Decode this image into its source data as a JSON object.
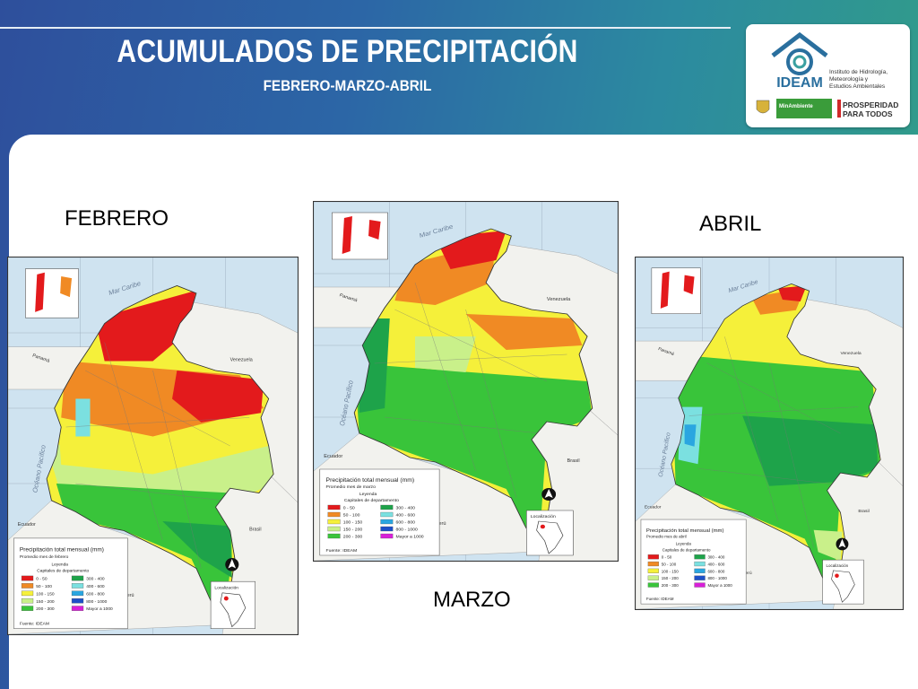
{
  "header": {
    "title": "ACUMULADOS DE PRECIPITACIÓN",
    "subtitle": "FEBRERO-MARZO-ABRIL"
  },
  "logos": {
    "ideam_name": "IDEAM",
    "ideam_full": [
      "Instituto de Hidrología,",
      "Meteorología y",
      "Estudios Ambientales"
    ],
    "minambiente": "MinAmbiente",
    "prosperidad": [
      "PROSPERIDAD",
      "PARA TODOS"
    ]
  },
  "maps": [
    {
      "label": "FEBRERO",
      "legend_title": "Precipitación total mensual (mm)",
      "legend_sub": "Promedio mes de febrero",
      "legend_heading": "Leyenda",
      "legend_caps": "Capitales de departamento",
      "source": "Fuente: IDEAM"
    },
    {
      "label": "MARZO",
      "legend_title": "Precipitación total mensual (mm)",
      "legend_sub": "Promedio mes de marzo",
      "legend_heading": "Leyenda",
      "legend_caps": "Capitales de departamento",
      "source": "Fuente: IDEAM"
    },
    {
      "label": "ABRIL",
      "legend_title": "Precipitación total mensual (mm)",
      "legend_sub": "Promedio mes de abril",
      "legend_heading": "Leyenda",
      "legend_caps": "Capitales de departamento",
      "source": "Fuente: IDEAM"
    }
  ],
  "legend_classes": [
    {
      "range": "0 - 50",
      "color": "#e31a1c"
    },
    {
      "range": "50 - 100",
      "color": "#f08a24"
    },
    {
      "range": "100 - 150",
      "color": "#f5f03a"
    },
    {
      "range": "150 - 200",
      "color": "#c9f08a"
    },
    {
      "range": "200 - 300",
      "color": "#39c43a"
    },
    {
      "range": "300 - 400",
      "color": "#1ea34a"
    },
    {
      "range": "400 - 600",
      "color": "#7be0e0"
    },
    {
      "range": "600 - 800",
      "color": "#2aa6e0"
    },
    {
      "range": "800 - 1000",
      "color": "#1d4fc7"
    },
    {
      "range": "Mayor a 1000",
      "color": "#d81fd8"
    }
  ],
  "geo_labels": {
    "mar_caribe": "Mar Caribe",
    "panama": "Panamá",
    "venezuela": "Venezuela",
    "oceano": "Océano Pacífico",
    "ecuador": "Ecuador",
    "peru": "Perú",
    "brasil": "Brasil",
    "localizacion": "Localización",
    "north": "N"
  }
}
